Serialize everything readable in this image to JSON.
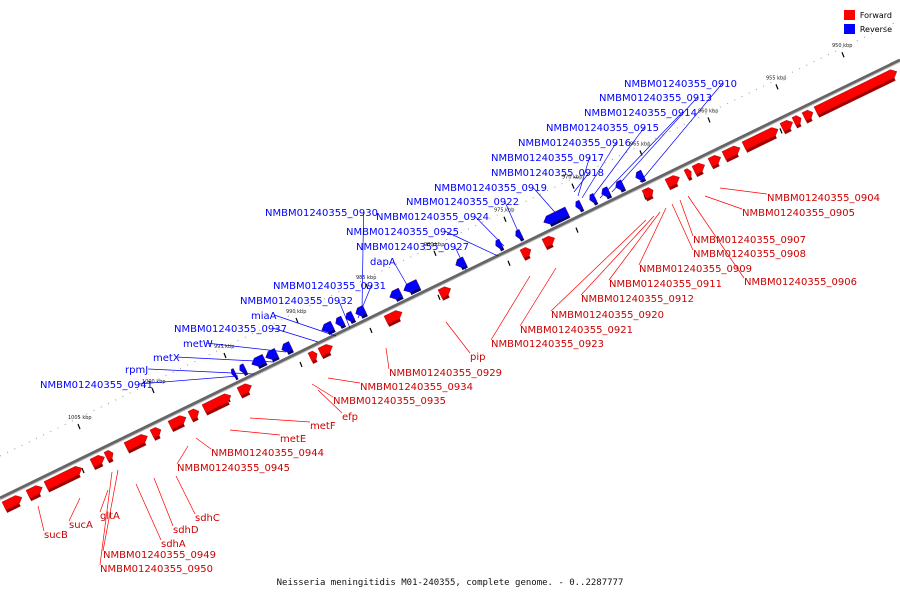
{
  "legend": {
    "forward_label": "Forward",
    "reverse_label": "Reverse",
    "forward_color": "#ff0000",
    "reverse_color": "#0000ff"
  },
  "caption": "Neisseria meningitidis M01-240355, complete genome. - 0..2287777",
  "ticks": [
    "950 kbp",
    "955 kbp",
    "960 kbp",
    "965 kbp",
    "970 kbp",
    "975 kbp",
    "980 kbp",
    "985 kbp",
    "990 kbp",
    "995 kbp",
    "1000 kbp",
    "1005 kbp"
  ],
  "reverse_labels": [
    "NMBM01240355_0910",
    "NMBM01240355_0913",
    "NMBM01240355_0914",
    "NMBM01240355_0915",
    "NMBM01240355_0916",
    "NMBM01240355_0917",
    "NMBM01240355_0918",
    "NMBM01240355_0919",
    "NMBM01240355_0922",
    "NMBM01240355_0930",
    "NMBM01240355_0924",
    "NMBM01240355_0925",
    "NMBM01240355_0927",
    "dapA",
    "NMBM01240355_0931",
    "NMBM01240355_0932",
    "miaA",
    "NMBM01240355_0937",
    "metW",
    "metX",
    "rpmJ",
    "NMBM01240355_0941"
  ],
  "forward_labels": [
    "NMBM01240355_0904",
    "NMBM01240355_0905",
    "NMBM01240355_0907",
    "NMBM01240355_0908",
    "NMBM01240355_0909",
    "NMBM01240355_0906",
    "NMBM01240355_0911",
    "NMBM01240355_0912",
    "NMBM01240355_0920",
    "NMBM01240355_0921",
    "NMBM01240355_0923",
    "pip",
    "NMBM01240355_0929",
    "NMBM01240355_0934",
    "NMBM01240355_0935",
    "efp",
    "metF",
    "metE",
    "NMBM01240355_0944",
    "NMBM01240355_0945",
    "sdhC",
    "sdhD",
    "sdhA",
    "gltA",
    "sucA",
    "sucB",
    "NMBM01240355_0949",
    "NMBM01240355_0950"
  ]
}
